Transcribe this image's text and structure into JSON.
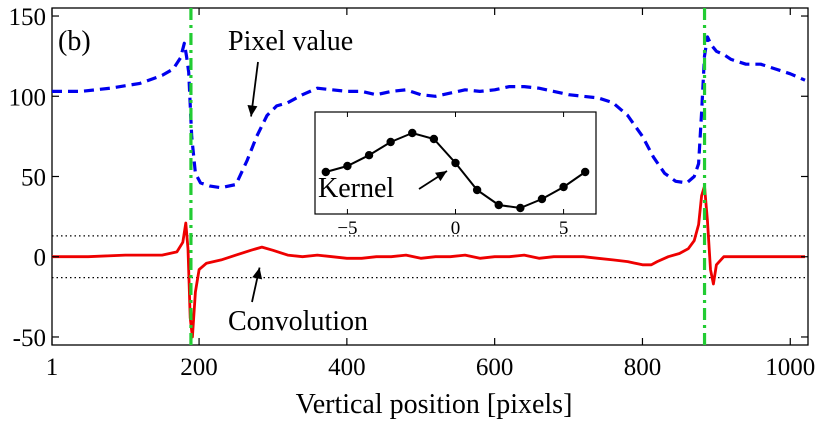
{
  "chart_data": {
    "type": "line",
    "panel_label": "(b)",
    "xlabel": "Vertical position [pixels]",
    "ylabel": "",
    "xlim": [
      1,
      1024
    ],
    "ylim": [
      -55,
      155
    ],
    "xticks": [
      1,
      200,
      400,
      600,
      800,
      1000
    ],
    "yticks": [
      -50,
      0,
      50,
      100,
      150
    ],
    "grid": false,
    "series": [
      {
        "name": "Pixel value",
        "color": "#0000ee",
        "style": "dashed",
        "x": [
          1,
          40,
          80,
          120,
          150,
          165,
          175,
          180,
          183,
          186,
          190,
          195,
          202,
          215,
          230,
          250,
          265,
          278,
          292,
          305,
          320,
          340,
          360,
          380,
          400,
          420,
          440,
          460,
          480,
          500,
          520,
          540,
          560,
          580,
          600,
          620,
          640,
          660,
          680,
          700,
          720,
          740,
          760,
          780,
          800,
          815,
          830,
          845,
          860,
          870,
          876,
          880,
          884,
          888,
          893,
          900,
          910,
          920,
          940,
          960,
          980,
          1000,
          1020
        ],
        "y": [
          103,
          103,
          105,
          108,
          113,
          117,
          124,
          133,
          125,
          115,
          75,
          52,
          46,
          44,
          43,
          45,
          60,
          75,
          88,
          94,
          96,
          101,
          105,
          104,
          103,
          103,
          101,
          103,
          104,
          101,
          100,
          102,
          104,
          103,
          104,
          106,
          106,
          105,
          103,
          101,
          100,
          99,
          96,
          88,
          75,
          62,
          52,
          47,
          46,
          50,
          58,
          90,
          125,
          137,
          132,
          128,
          126,
          123,
          120,
          120,
          117,
          114,
          110
        ]
      },
      {
        "name": "Convolution",
        "color": "#ee0000",
        "style": "solid",
        "x": [
          1,
          50,
          100,
          150,
          170,
          178,
          182,
          185,
          188,
          191,
          195,
          200,
          210,
          230,
          250,
          270,
          285,
          300,
          320,
          340,
          360,
          380,
          400,
          420,
          440,
          460,
          480,
          500,
          520,
          540,
          560,
          580,
          600,
          620,
          640,
          660,
          680,
          700,
          720,
          740,
          760,
          780,
          800,
          812,
          820,
          835,
          850,
          862,
          870,
          876,
          880,
          884,
          888,
          892,
          896,
          900,
          910,
          930,
          960,
          990,
          1020
        ],
        "y": [
          0,
          0,
          1,
          1,
          3,
          9,
          21,
          5,
          -38,
          -50,
          -22,
          -8,
          -4,
          -2,
          1,
          4,
          6,
          4,
          1,
          0,
          1,
          0,
          -1,
          -1,
          0,
          0,
          1,
          -1,
          0,
          0,
          1,
          -1,
          0,
          0,
          1,
          -1,
          0,
          0,
          0,
          -1,
          -2,
          -3,
          -5,
          -5,
          -3,
          0,
          2,
          5,
          10,
          20,
          38,
          44,
          22,
          -8,
          -17,
          -5,
          0,
          0,
          0,
          0,
          0
        ]
      }
    ],
    "threshold_lines": [
      13,
      -13
    ],
    "edge_markers_x": [
      189,
      884
    ],
    "annotations": [
      {
        "text": "Pixel value",
        "points_to_x": 292,
        "points_to_y": 88
      },
      {
        "text": "Convolution",
        "points_to_x": 290,
        "points_to_y": -8
      }
    ],
    "inset": {
      "title": "Kernel",
      "type": "line",
      "color": "#000000",
      "markers": "filled-circle",
      "xlim": [
        -6.5,
        6.5
      ],
      "ylim": [
        -0.65,
        1.05
      ],
      "xticks": [
        -5,
        0,
        5
      ],
      "x": [
        -6,
        -5,
        -4,
        -3,
        -2,
        -1,
        0,
        1,
        2,
        3,
        4,
        5,
        6
      ],
      "y": [
        0.05,
        0.15,
        0.33,
        0.55,
        0.7,
        0.6,
        0.2,
        -0.25,
        -0.5,
        -0.55,
        -0.4,
        -0.2,
        0.05
      ]
    }
  }
}
